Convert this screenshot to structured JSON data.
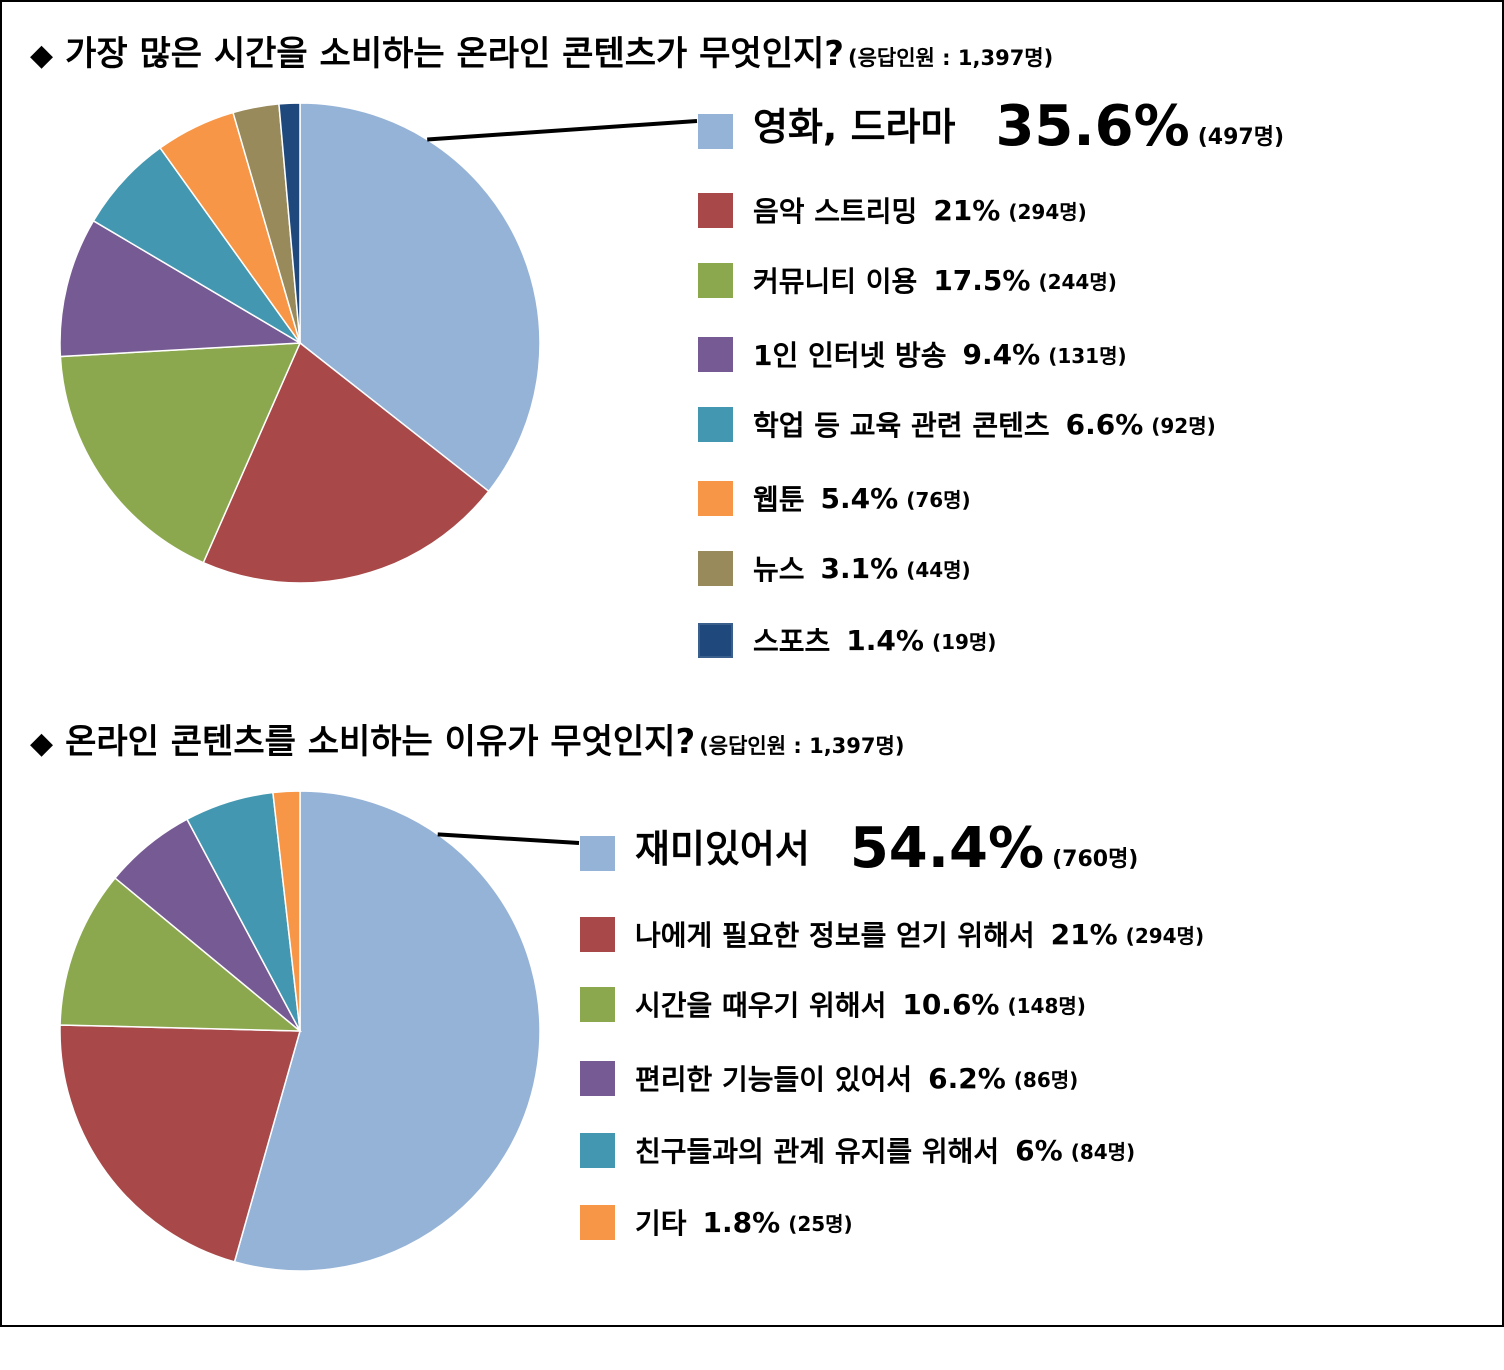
{
  "charts": [
    {
      "title": "가장 많은 시간을 소비하는 온라인 콘텐츠가 무엇인지?",
      "subtitle": "(응답인원 : 1,397명)",
      "chart_data": {
        "type": "pie",
        "categories": [
          "영화, 드라마",
          "음악 스트리밍",
          "커뮤니티 이용",
          "1인 인터넷 방송",
          "학업 등 교육 관련 콘텐츠",
          "웹툰",
          "뉴스",
          "스포츠"
        ],
        "values": [
          35.6,
          21,
          17.5,
          9.4,
          6.6,
          5.4,
          3.1,
          1.4
        ],
        "pct_labels": [
          "35.6%",
          "21%",
          "17.5%",
          "9.4%",
          "6.6%",
          "5.4%",
          "3.1%",
          "1.4%"
        ],
        "counts": [
          "(497명)",
          "(294명)",
          "(244명)",
          "(131명)",
          "(92명)",
          "(76명)",
          "(44명)",
          "(19명)"
        ],
        "colors": [
          "#95B3D7",
          "#A84848",
          "#8CA84F",
          "#765A93",
          "#4497B0",
          "#F79646",
          "#998A5C",
          "#1F497D"
        ]
      }
    },
    {
      "title": "온라인 콘텐츠를 소비하는 이유가 무엇인지?",
      "subtitle": "(응답인원 : 1,397명)",
      "chart_data": {
        "type": "pie",
        "categories": [
          "재미있어서",
          "나에게 필요한 정보를 얻기 위해서",
          "시간을 때우기 위해서",
          "편리한 기능들이 있어서",
          "친구들과의 관계 유지를 위해서",
          "기타"
        ],
        "values": [
          54.4,
          21,
          10.6,
          6.2,
          6,
          1.8
        ],
        "pct_labels": [
          "54.4%",
          "21%",
          "10.6%",
          "6.2%",
          "6%",
          "1.8%"
        ],
        "counts": [
          "(760명)",
          "(294명)",
          "(148명)",
          "(86명)",
          "(84명)",
          "(25명)"
        ],
        "colors": [
          "#95B3D7",
          "#A84848",
          "#8CA84F",
          "#765A93",
          "#4497B0",
          "#F79646"
        ]
      }
    }
  ]
}
